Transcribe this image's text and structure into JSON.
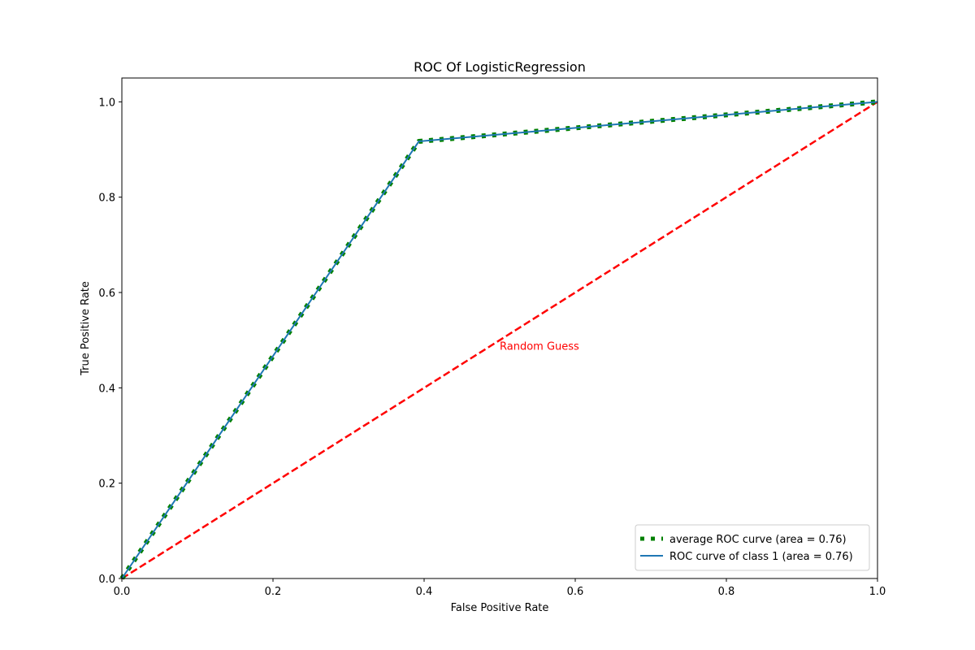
{
  "chart_data": {
    "type": "line",
    "title": "ROC Of LogisticRegression",
    "xlabel": "False Positive Rate",
    "ylabel": "True Positive Rate",
    "xlim": [
      0.0,
      1.0
    ],
    "ylim": [
      0.0,
      1.05
    ],
    "xticks": [
      "0.0",
      "0.2",
      "0.4",
      "0.6",
      "0.8",
      "1.0"
    ],
    "yticks": [
      "0.0",
      "0.2",
      "0.4",
      "0.6",
      "0.8",
      "1.0"
    ],
    "grid": false,
    "legend_position": "lower-right",
    "series": [
      {
        "name": "average ROC curve (area = 0.76)",
        "style": "dotted",
        "color": "#008000",
        "x": [
          0.0,
          0.393,
          1.0
        ],
        "y": [
          0.0,
          0.917,
          1.0
        ]
      },
      {
        "name": "ROC curve of class 1 (area = 0.76)",
        "style": "solid",
        "color": "#1f77b4",
        "x": [
          0.0,
          0.393,
          1.0
        ],
        "y": [
          0.0,
          0.917,
          1.0
        ]
      },
      {
        "style": "dashed",
        "color": "#ff0000",
        "x": [
          0.0,
          1.0
        ],
        "y": [
          0.0,
          1.0
        ]
      }
    ],
    "annotations": [
      {
        "text": "Random Guess",
        "x": 0.5,
        "y": 0.48,
        "color": "#ff0000"
      }
    ]
  }
}
